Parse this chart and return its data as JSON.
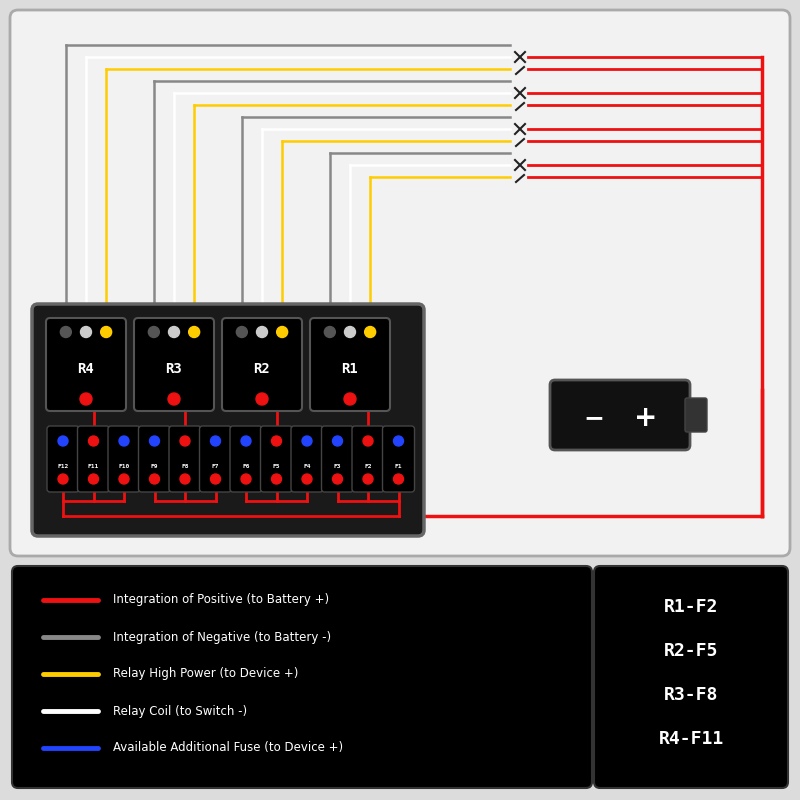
{
  "bg_color": "#dcdcdc",
  "main_box_bg": "#f0f0f0",
  "panel_bg": "#1a1a1a",
  "relay_labels": [
    "R4",
    "R3",
    "R2",
    "R1"
  ],
  "fuse_labels": [
    "F12",
    "F11",
    "F10",
    "F9",
    "F8",
    "F7",
    "F6",
    "F5",
    "F4",
    "F3",
    "F2",
    "F1"
  ],
  "legend_items": [
    {
      "color": "#ee1111",
      "label": "Integration of Positive (to Battery +)"
    },
    {
      "color": "#888888",
      "label": "Integration of Negative (to Battery -)"
    },
    {
      "color": "#ffcc00",
      "label": "Relay High Power (to Device +)"
    },
    {
      "color": "#ffffff",
      "label": "Relay Coil (to Switch -)"
    },
    {
      "color": "#2244ff",
      "label": "Available Additional Fuse (to Device +)"
    }
  ],
  "relay_map_text": [
    "R1-F2",
    "R2-F5",
    "R3-F8",
    "R4-F11"
  ]
}
